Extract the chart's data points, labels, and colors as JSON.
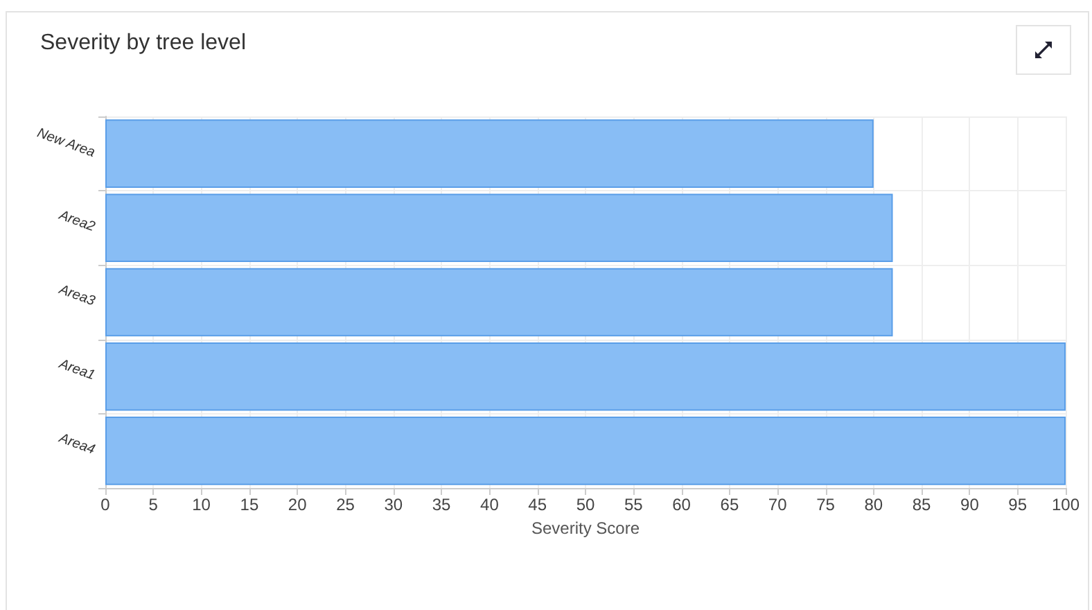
{
  "chart_data": {
    "type": "bar",
    "orientation": "horizontal",
    "title": "Severity by tree level",
    "xlabel": "Severity Score",
    "categories": [
      "New Area",
      "Area2",
      "Area3",
      "Area1",
      "Area4"
    ],
    "values": [
      80,
      82,
      82,
      100,
      100
    ],
    "color": "#88bdf5",
    "xlim": [
      0,
      100
    ],
    "xticks": [
      0,
      5,
      10,
      15,
      20,
      25,
      30,
      35,
      40,
      45,
      50,
      55,
      60,
      65,
      70,
      75,
      80,
      85,
      90,
      95,
      100
    ],
    "grid": true
  }
}
